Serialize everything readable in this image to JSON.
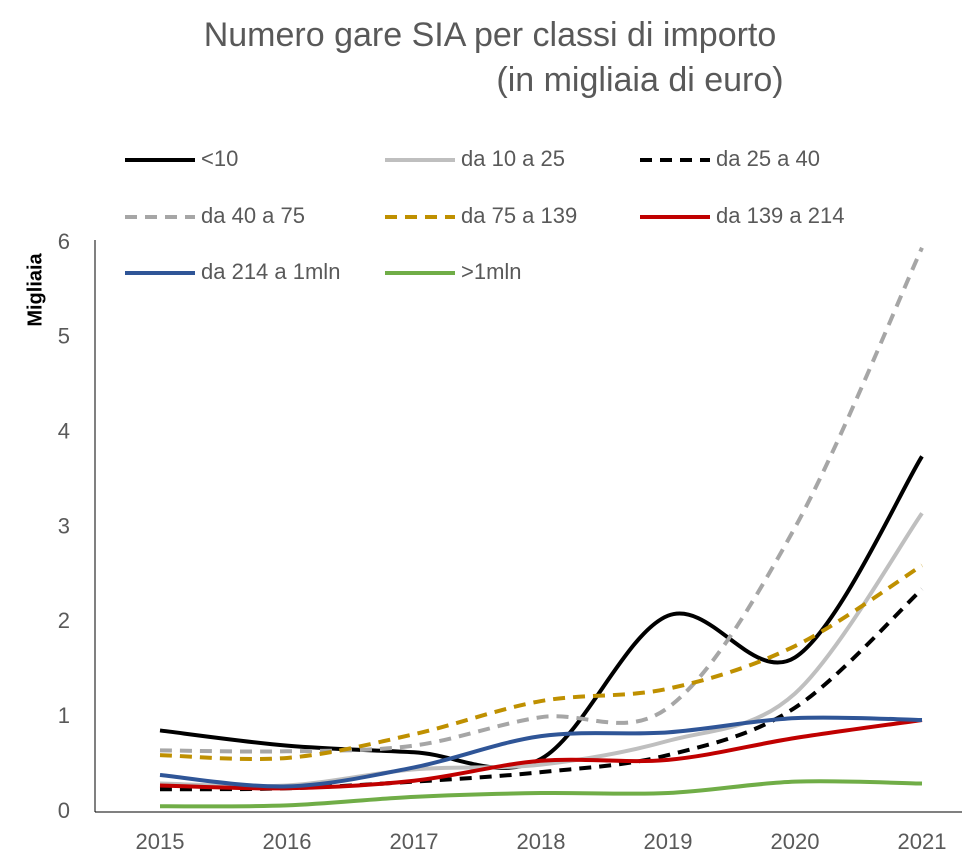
{
  "chart_data": {
    "type": "line",
    "title": "Numero gare SIA per classi di importo",
    "subtitle": "(in migliaia di euro)",
    "y_label": "Migliaia",
    "categories": [
      "2015",
      "2016",
      "2017",
      "2018",
      "2019",
      "2020",
      "2021"
    ],
    "ylim": [
      0,
      6
    ],
    "yticks": [
      0,
      1,
      2,
      3,
      4,
      5,
      6
    ],
    "smooth": true,
    "legend": "top",
    "series": [
      {
        "name": "<10",
        "color": "#000000",
        "dashed": false,
        "values": [
          0.86,
          0.7,
          0.63,
          0.56,
          2.07,
          1.63,
          3.75
        ]
      },
      {
        "name": "da 10 a 25",
        "color": "#bfbfbf",
        "dashed": false,
        "values": [
          0.3,
          0.28,
          0.45,
          0.5,
          0.75,
          1.25,
          3.15
        ]
      },
      {
        "name": "da 25 a 40",
        "color": "#000000",
        "dashed": true,
        "values": [
          0.24,
          0.25,
          0.32,
          0.42,
          0.6,
          1.1,
          2.35
        ]
      },
      {
        "name": "da 40 a 75",
        "color": "#a6a6a6",
        "dashed": true,
        "values": [
          0.65,
          0.64,
          0.7,
          1.0,
          1.1,
          3.0,
          5.95
        ]
      },
      {
        "name": "da 75 a 139",
        "color": "#bf9000",
        "dashed": true,
        "values": [
          0.6,
          0.57,
          0.82,
          1.17,
          1.3,
          1.75,
          2.6
        ]
      },
      {
        "name": "da 139 a 214",
        "color": "#c00000",
        "dashed": false,
        "values": [
          0.28,
          0.25,
          0.33,
          0.54,
          0.55,
          0.78,
          0.97
        ]
      },
      {
        "name": "da 214 a 1mln",
        "color": "#2f5597",
        "dashed": false,
        "values": [
          0.39,
          0.27,
          0.47,
          0.8,
          0.84,
          0.99,
          0.97
        ]
      },
      {
        "name": ">1mln",
        "color": "#70ad47",
        "dashed": false,
        "values": [
          0.06,
          0.07,
          0.16,
          0.2,
          0.2,
          0.32,
          0.3
        ]
      }
    ]
  }
}
